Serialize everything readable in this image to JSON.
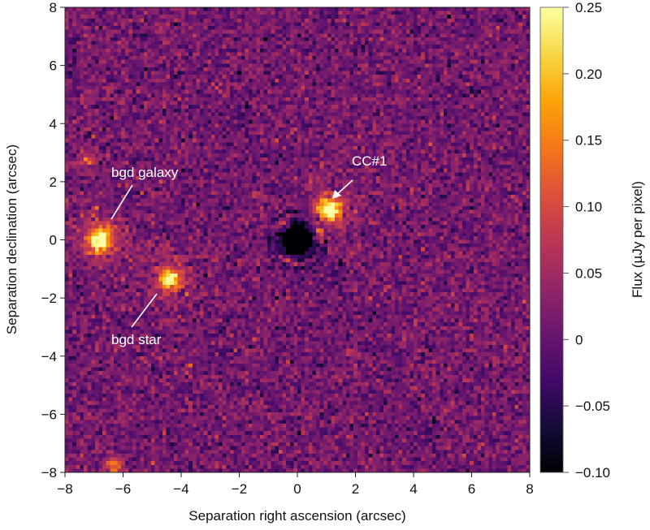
{
  "chart_data": {
    "type": "heatmap",
    "xlabel": "Separation right ascension (arcsec)",
    "ylabel": "Separation declination (arcsec)",
    "xlim": [
      -8,
      8
    ],
    "ylim": [
      -8,
      8
    ],
    "xticks": [
      "−8",
      "−6",
      "−4",
      "−2",
      "0",
      "2",
      "4",
      "6",
      "8"
    ],
    "yticks": [
      "−8",
      "−6",
      "−4",
      "−2",
      "0",
      "2",
      "4",
      "6",
      "8"
    ],
    "colorbar": {
      "label": "Flux (µJy per pixel)",
      "range": [
        -0.1,
        0.25
      ],
      "ticks": [
        "−0.10",
        "−0.05",
        "0",
        "0.05",
        "0.10",
        "0.15",
        "0.20",
        "0.25"
      ],
      "colormap": "inferno"
    },
    "grid": false,
    "sources": [
      {
        "label": "bgd galaxy",
        "x": -6.8,
        "y": 0.0,
        "peak": 0.25,
        "width": 0.3
      },
      {
        "label": "bgd star",
        "x": -4.4,
        "y": -1.35,
        "peak": 0.25,
        "width": 0.22
      },
      {
        "label": "CC#1",
        "x": 1.1,
        "y": 1.05,
        "peak": 0.28,
        "width": 0.25
      },
      {
        "label": "",
        "x": -7.2,
        "y": 2.8,
        "peak": 0.1,
        "width": 0.2
      },
      {
        "label": "",
        "x": -6.3,
        "y": -7.8,
        "peak": 0.12,
        "width": 0.2
      }
    ],
    "mask": {
      "x": 0,
      "y": 0,
      "radius": 0.55
    }
  }
}
